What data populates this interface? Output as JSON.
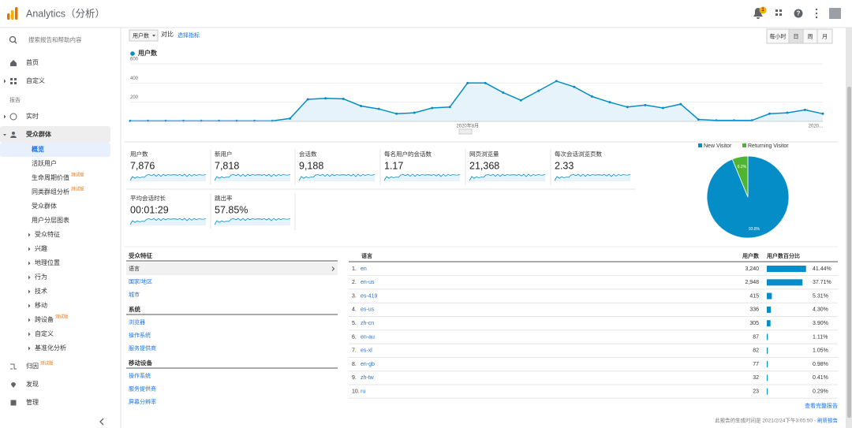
{
  "header": {
    "title": "Analytics（分析）",
    "notifications": "1"
  },
  "sidebar": {
    "search": "搜索报告和帮助内容",
    "top": [
      "首页",
      "自定义"
    ],
    "section_label": "报告",
    "reports": [
      "实时",
      "受众群体"
    ],
    "audience_sub": [
      {
        "label": "概览"
      },
      {
        "label": "活跃用户"
      },
      {
        "label": "生命周期价值",
        "badge": "测试版"
      },
      {
        "label": "同类群组分析",
        "badge": "测试版"
      },
      {
        "label": "受众群体"
      },
      {
        "label": "用户分层图表"
      },
      {
        "label": "受众特征"
      },
      {
        "label": "兴趣"
      },
      {
        "label": "地理位置"
      },
      {
        "label": "行为"
      },
      {
        "label": "技术"
      },
      {
        "label": "移动"
      },
      {
        "label": "跨设备",
        "badge": "测试版"
      },
      {
        "label": "自定义"
      },
      {
        "label": "基准化分析"
      }
    ],
    "bottom": [
      {
        "label": "归因",
        "badge": "测试版"
      },
      {
        "label": "发现"
      },
      {
        "label": "管理"
      }
    ]
  },
  "toolbar": {
    "metric": "用户数",
    "compare": "对比",
    "select_metric": "选择指标",
    "granularity": [
      "每小时",
      "日",
      "周",
      "月"
    ]
  },
  "line_chart": {
    "type": "line",
    "legend": "用户数",
    "color": "#058dc7",
    "categories": [
      null,
      null,
      null,
      null,
      null,
      null,
      null,
      null,
      null,
      null,
      null,
      null,
      null,
      null,
      null,
      null,
      null,
      null,
      null,
      "2020年8月",
      null,
      null,
      null,
      null,
      null,
      null,
      null,
      null,
      null,
      null,
      null,
      null,
      null,
      null,
      null,
      null,
      null,
      null,
      null,
      "2020..."
    ],
    "values": [
      5,
      5,
      5,
      5,
      5,
      5,
      5,
      5,
      5,
      30,
      230,
      240,
      235,
      160,
      130,
      80,
      90,
      140,
      150,
      400,
      400,
      300,
      220,
      320,
      420,
      360,
      260,
      200,
      150,
      170,
      140,
      180,
      20,
      10,
      10,
      10,
      80,
      90,
      120,
      80
    ],
    "ylim": [
      0,
      600
    ],
    "yticks": [
      200,
      400,
      600
    ]
  },
  "metrics": [
    {
      "label": "用户数",
      "value": "7,876"
    },
    {
      "label": "新用户",
      "value": "7,818"
    },
    {
      "label": "会话数",
      "value": "9,188"
    },
    {
      "label": "每名用户的会话数",
      "value": "1.17"
    },
    {
      "label": "网页浏览量",
      "value": "21,368"
    },
    {
      "label": "每次会话浏览页数",
      "value": "2.33"
    },
    {
      "label": "平均会话时长",
      "value": "00:01:29"
    },
    {
      "label": "跳出率",
      "value": "57.85%"
    }
  ],
  "pie_chart": {
    "type": "pie",
    "categories": [
      "New Visitor",
      "Returning Visitor"
    ],
    "values": [
      93.8,
      6.2
    ],
    "value_labels": [
      "93.8%",
      "6.2%"
    ],
    "colors": [
      "#058dc7",
      "#50b432"
    ]
  },
  "left_table": [
    {
      "title": "受众特征",
      "items": [
        "语言",
        "国家/地区",
        "城市"
      ]
    },
    {
      "title": "系统",
      "items": [
        "浏览器",
        "操作系统",
        "服务提供商"
      ]
    },
    {
      "title": "移动设备",
      "items": [
        "操作系统",
        "服务提供商",
        "屏幕分辨率"
      ]
    }
  ],
  "table": {
    "columns": [
      "语言",
      "用户数",
      "用户数百分比"
    ],
    "rows": [
      {
        "rank": "1.",
        "name": "en",
        "users": "3,240",
        "percent": 41.44,
        "percent_label": "41.44%"
      },
      {
        "rank": "2.",
        "name": "en-us",
        "users": "2,948",
        "percent": 37.71,
        "percent_label": "37.71%"
      },
      {
        "rank": "3.",
        "name": "es-419",
        "users": "415",
        "percent": 5.31,
        "percent_label": "5.31%"
      },
      {
        "rank": "4.",
        "name": "es-us",
        "users": "336",
        "percent": 4.3,
        "percent_label": "4.30%"
      },
      {
        "rank": "5.",
        "name": "zh-cn",
        "users": "305",
        "percent": 3.9,
        "percent_label": "3.90%"
      },
      {
        "rank": "6.",
        "name": "en-au",
        "users": "87",
        "percent": 1.11,
        "percent_label": "1.11%"
      },
      {
        "rank": "7.",
        "name": "es-xl",
        "users": "82",
        "percent": 1.05,
        "percent_label": "1.05%"
      },
      {
        "rank": "8.",
        "name": "en-gb",
        "users": "77",
        "percent": 0.98,
        "percent_label": "0.98%"
      },
      {
        "rank": "9.",
        "name": "zh-tw",
        "users": "32",
        "percent": 0.41,
        "percent_label": "0.41%"
      },
      {
        "rank": "10.",
        "name": "ru",
        "users": "23",
        "percent": 0.29,
        "percent_label": "0.29%"
      }
    ]
  },
  "footer": {
    "full_report": "查看完整报告",
    "generated": "此报告的生成时间是 2021/2/24下午3:05:50 -",
    "refresh": "刷新报告"
  }
}
